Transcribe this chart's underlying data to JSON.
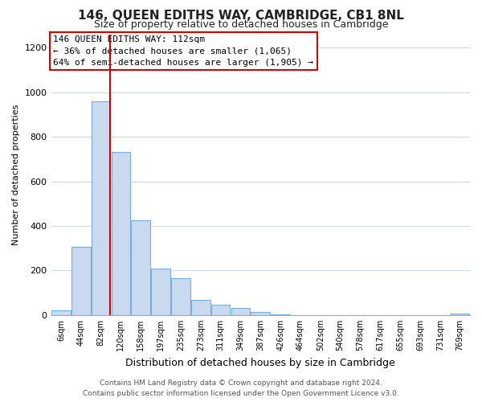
{
  "title": "146, QUEEN EDITHS WAY, CAMBRIDGE, CB1 8NL",
  "subtitle": "Size of property relative to detached houses in Cambridge",
  "xlabel": "Distribution of detached houses by size in Cambridge",
  "ylabel": "Number of detached properties",
  "bar_labels": [
    "6sqm",
    "44sqm",
    "82sqm",
    "120sqm",
    "158sqm",
    "197sqm",
    "235sqm",
    "273sqm",
    "311sqm",
    "349sqm",
    "387sqm",
    "426sqm",
    "464sqm",
    "502sqm",
    "540sqm",
    "578sqm",
    "617sqm",
    "655sqm",
    "693sqm",
    "731sqm",
    "769sqm"
  ],
  "bar_values": [
    20,
    305,
    960,
    730,
    425,
    210,
    165,
    70,
    48,
    32,
    15,
    5,
    0,
    0,
    0,
    0,
    0,
    0,
    0,
    0,
    8
  ],
  "bar_color": "#c9d9f0",
  "bar_edge_color": "#7aaed6",
  "vline_color": "#cc0000",
  "vline_x_index": 2.475,
  "annotation_title": "146 QUEEN EDITHS WAY: 112sqm",
  "annotation_line1": "← 36% of detached houses are smaller (1,065)",
  "annotation_line2": "64% of semi-detached houses are larger (1,905) →",
  "annotation_box_edgecolor": "#cc0000",
  "ylim": [
    0,
    1260
  ],
  "yticks": [
    0,
    200,
    400,
    600,
    800,
    1000,
    1200
  ],
  "footer_line1": "Contains HM Land Registry data © Crown copyright and database right 2024.",
  "footer_line2": "Contains public sector information licensed under the Open Government Licence v3.0.",
  "background_color": "#ffffff",
  "grid_color": "#ccd9e8"
}
